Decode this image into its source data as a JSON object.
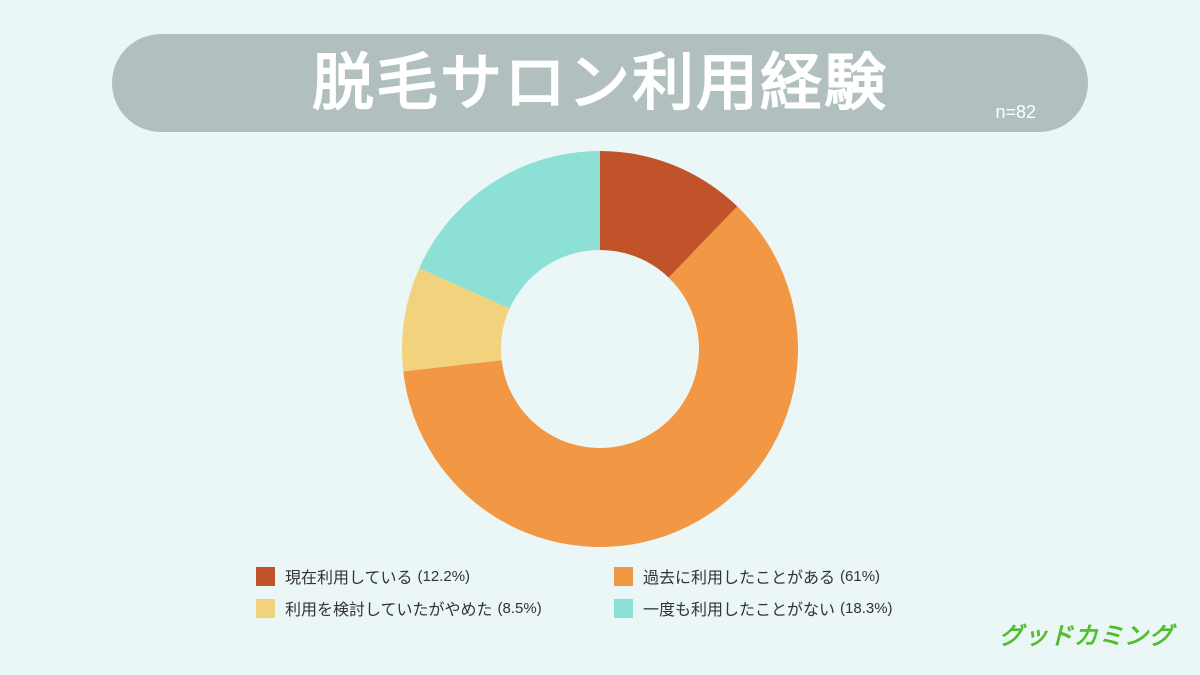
{
  "header": {
    "title": "脱毛サロン利用経験",
    "sample_size": "n=82"
  },
  "chart_data": {
    "type": "pie",
    "donut": true,
    "title": "脱毛サロン利用経験",
    "categories": [
      "現在利用している",
      "過去に利用したことがある",
      "利用を検討していたがやめた",
      "一度も利用したことがない"
    ],
    "values": [
      12.2,
      61,
      8.5,
      18.3
    ],
    "value_labels": [
      "(12.2%)",
      "(61%)",
      "(8.5%)",
      "(18.3%)"
    ],
    "colors": [
      "#c0532a",
      "#f29845",
      "#f2d27c",
      "#8ce0d6"
    ],
    "legend_position": "bottom"
  },
  "brand": {
    "logo_text": "グッドカミング"
  }
}
